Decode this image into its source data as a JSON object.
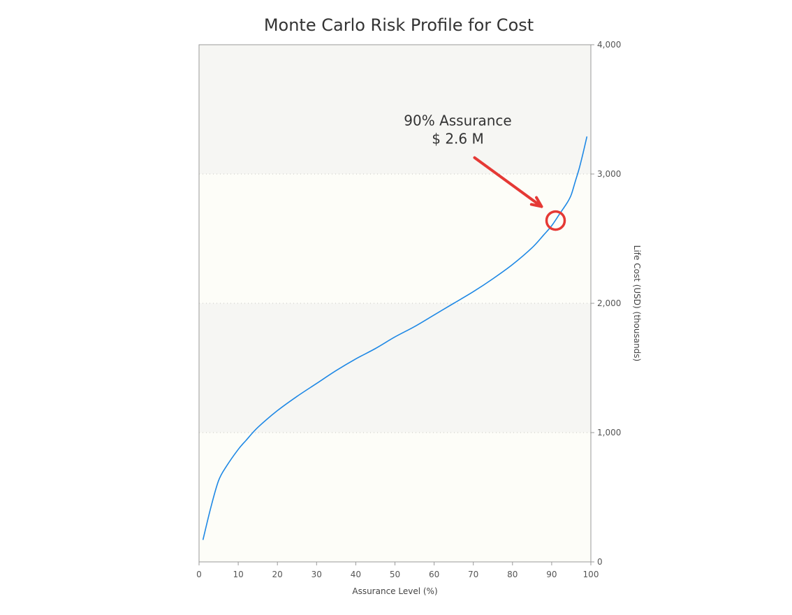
{
  "chart_data": {
    "type": "line",
    "title": "Monte Carlo Risk Profile for Cost",
    "xlabel": "Assurance Level (%)",
    "ylabel": "Life Cost (USD) (thousands)",
    "xlim": [
      0,
      100
    ],
    "ylim": [
      0,
      4000
    ],
    "x_ticks": [
      0,
      10,
      20,
      30,
      40,
      50,
      60,
      70,
      80,
      90,
      100
    ],
    "x_tick_labels": [
      "0",
      "10",
      "20",
      "30",
      "40",
      "50",
      "60",
      "70",
      "80",
      "90",
      "100"
    ],
    "y_ticks": [
      0,
      1000,
      2000,
      3000,
      4000
    ],
    "y_tick_labels": [
      "0",
      "1,000",
      "2,000",
      "3,000",
      "4,000"
    ],
    "y_axis_position": "right",
    "grid": "horizontal-dotted",
    "alternating_bands": true,
    "series": [
      {
        "color": "#1e88e5",
        "x": [
          1,
          3,
          5,
          7,
          10,
          12,
          15,
          20,
          25,
          30,
          35,
          40,
          45,
          50,
          55,
          60,
          65,
          70,
          75,
          80,
          85,
          88,
          90,
          92,
          94,
          95,
          96,
          97,
          98,
          99
        ],
        "y": [
          170,
          420,
          630,
          740,
          870,
          940,
          1040,
          1170,
          1280,
          1380,
          1480,
          1570,
          1650,
          1740,
          1820,
          1910,
          2000,
          2090,
          2190,
          2300,
          2430,
          2530,
          2600,
          2690,
          2780,
          2840,
          2940,
          3040,
          3160,
          3290
        ]
      }
    ],
    "annotation": {
      "line1": "90% Assurance",
      "line2": "$ 2.6 M",
      "x": 91,
      "y": 2640,
      "circle_color": "#e53935",
      "arrow_color": "#e53935"
    }
  }
}
